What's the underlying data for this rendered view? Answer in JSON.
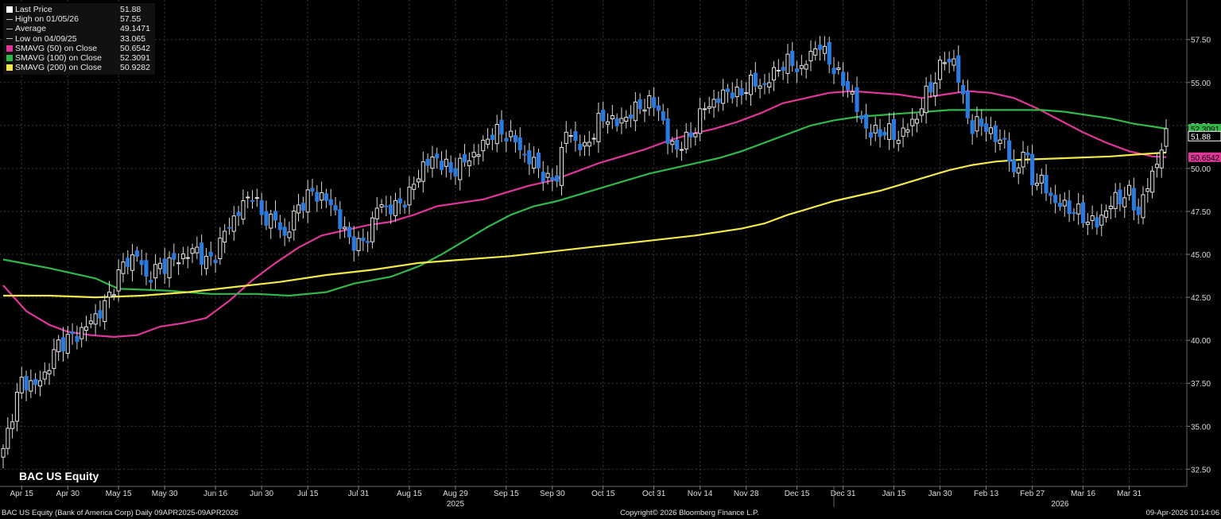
{
  "legend": {
    "items": [
      {
        "label": "Last Price",
        "value": "51.88",
        "color": "#ffffff",
        "icon": "filled-square"
      },
      {
        "label": "High on 01/05/26",
        "value": "57.55",
        "color": "#bbbbbb",
        "icon": "high-marker"
      },
      {
        "label": "Average",
        "value": "49.1471",
        "color": "#bbbbbb",
        "icon": "average-marker"
      },
      {
        "label": "Low on 04/09/25",
        "value": "33.065",
        "color": "#bbbbbb",
        "icon": "low-marker"
      },
      {
        "label": "SMAVG (50)  on Close",
        "value": "50.6542",
        "color": "#e0369a",
        "icon": "filled-square"
      },
      {
        "label": "SMAVG (100)  on Close",
        "value": "52.3091",
        "color": "#30b84a",
        "icon": "filled-square"
      },
      {
        "label": "SMAVG (200)  on Close",
        "value": "50.9282",
        "color": "#f2e84a",
        "icon": "filled-square"
      }
    ]
  },
  "ticker": "BAC US Equity",
  "footer": {
    "description": "BAC US Equity (Bank of America Corp) Daily 09APR2025-09APR2026",
    "copyright": "Copyright© 2026 Bloomberg Finance L.P.",
    "timestamp": "09-Apr-2026 10:14:06"
  },
  "chart_data": {
    "type": "candlestick",
    "y_ticks": [
      "32.50",
      "35.00",
      "37.50",
      "40.00",
      "42.50",
      "45.00",
      "47.50",
      "50.00",
      "52.50",
      "55.00",
      "57.50"
    ],
    "ylim": [
      31.5,
      59.8
    ],
    "x_tick_labels": [
      "Apr 15",
      "Apr 30",
      "May 15",
      "May 30",
      "Jun 16",
      "Jun 30",
      "Jul 15",
      "Jul 31",
      "Aug 15",
      "Aug 29",
      "Sep 15",
      "Sep 30",
      "Oct 15",
      "Oct 31",
      "Nov 14",
      "Nov 28",
      "Dec 15",
      "Dec 31",
      "Jan 15",
      "Jan 30",
      "Feb 13",
      "Feb 27",
      "Mar 16",
      "Mar 31"
    ],
    "year_labels": [
      "2025",
      "2026"
    ],
    "axis_tags": [
      {
        "value": 52.3091,
        "text": "52.3091",
        "color": "#30b84a"
      },
      {
        "value": 51.88,
        "text": "51.88",
        "color": "#ffffff"
      },
      {
        "value": 50.6542,
        "text": "50.6542",
        "color": "#e0369a"
      }
    ],
    "close_anchors": [
      {
        "d": 0,
        "v": 33.5
      },
      {
        "d": 2,
        "v": 35.8
      },
      {
        "d": 4,
        "v": 37.6
      },
      {
        "d": 7,
        "v": 37.4
      },
      {
        "d": 9,
        "v": 38.0
      },
      {
        "d": 12,
        "v": 39.8
      },
      {
        "d": 16,
        "v": 40.3
      },
      {
        "d": 19,
        "v": 41.1
      },
      {
        "d": 22,
        "v": 42.0
      },
      {
        "d": 26,
        "v": 44.4
      },
      {
        "d": 29,
        "v": 45.0
      },
      {
        "d": 31,
        "v": 43.6
      },
      {
        "d": 34,
        "v": 44.3
      },
      {
        "d": 37,
        "v": 44.6
      },
      {
        "d": 40,
        "v": 45.0
      },
      {
        "d": 42,
        "v": 45.3
      },
      {
        "d": 44,
        "v": 44.5
      },
      {
        "d": 46,
        "v": 45.0
      },
      {
        "d": 48,
        "v": 46.3
      },
      {
        "d": 51,
        "v": 47.5
      },
      {
        "d": 54,
        "v": 48.6
      },
      {
        "d": 56,
        "v": 47.2
      },
      {
        "d": 59,
        "v": 47.0
      },
      {
        "d": 61,
        "v": 46.0
      },
      {
        "d": 64,
        "v": 47.8
      },
      {
        "d": 67,
        "v": 48.6
      },
      {
        "d": 70,
        "v": 48.2
      },
      {
        "d": 72,
        "v": 47.5
      },
      {
        "d": 74,
        "v": 46.2
      },
      {
        "d": 77,
        "v": 45.5
      },
      {
        "d": 79,
        "v": 46.0
      },
      {
        "d": 81,
        "v": 47.8
      },
      {
        "d": 85,
        "v": 47.7
      },
      {
        "d": 88,
        "v": 48.5
      },
      {
        "d": 91,
        "v": 50.2
      },
      {
        "d": 94,
        "v": 50.6
      },
      {
        "d": 97,
        "v": 49.8
      },
      {
        "d": 100,
        "v": 50.4
      },
      {
        "d": 103,
        "v": 51.0
      },
      {
        "d": 106,
        "v": 52.1
      },
      {
        "d": 109,
        "v": 52.0
      },
      {
        "d": 111,
        "v": 51.6
      },
      {
        "d": 113,
        "v": 50.7
      },
      {
        "d": 116,
        "v": 50.1
      },
      {
        "d": 118,
        "v": 49.2
      },
      {
        "d": 120,
        "v": 49.6
      },
      {
        "d": 122,
        "v": 52.2
      },
      {
        "d": 124,
        "v": 51.6
      },
      {
        "d": 126,
        "v": 51.1
      },
      {
        "d": 129,
        "v": 52.7
      },
      {
        "d": 131,
        "v": 53.0
      },
      {
        "d": 133,
        "v": 52.6
      },
      {
        "d": 136,
        "v": 53.2
      },
      {
        "d": 139,
        "v": 53.8
      },
      {
        "d": 142,
        "v": 53.6
      },
      {
        "d": 144,
        "v": 51.6
      },
      {
        "d": 146,
        "v": 51.2
      },
      {
        "d": 148,
        "v": 51.6
      },
      {
        "d": 150,
        "v": 52.4
      },
      {
        "d": 152,
        "v": 53.6
      },
      {
        "d": 155,
        "v": 54.0
      },
      {
        "d": 157,
        "v": 54.6
      },
      {
        "d": 159,
        "v": 54.2
      },
      {
        "d": 162,
        "v": 55.0
      },
      {
        "d": 165,
        "v": 54.8
      },
      {
        "d": 168,
        "v": 55.9
      },
      {
        "d": 171,
        "v": 56.2
      },
      {
        "d": 173,
        "v": 55.6
      },
      {
        "d": 175,
        "v": 56.8
      },
      {
        "d": 177,
        "v": 57.1
      },
      {
        "d": 179,
        "v": 56.3
      },
      {
        "d": 181,
        "v": 55.3
      },
      {
        "d": 183,
        "v": 54.8
      },
      {
        "d": 186,
        "v": 52.8
      },
      {
        "d": 188,
        "v": 52.0
      },
      {
        "d": 191,
        "v": 52.2
      },
      {
        "d": 194,
        "v": 51.8
      },
      {
        "d": 196,
        "v": 52.4
      },
      {
        "d": 198,
        "v": 53.0
      },
      {
        "d": 200,
        "v": 54.3
      },
      {
        "d": 202,
        "v": 55.2
      },
      {
        "d": 204,
        "v": 56.4
      },
      {
        "d": 206,
        "v": 56.2
      },
      {
        "d": 208,
        "v": 54.1
      },
      {
        "d": 210,
        "v": 52.2
      },
      {
        "d": 212,
        "v": 52.8
      },
      {
        "d": 214,
        "v": 51.9
      },
      {
        "d": 217,
        "v": 51.6
      },
      {
        "d": 219,
        "v": 49.5
      },
      {
        "d": 221,
        "v": 51.1
      },
      {
        "d": 223,
        "v": 49.4
      },
      {
        "d": 225,
        "v": 49.2
      },
      {
        "d": 228,
        "v": 48.0
      },
      {
        "d": 231,
        "v": 47.7
      },
      {
        "d": 233,
        "v": 47.4
      },
      {
        "d": 235,
        "v": 47.0
      },
      {
        "d": 237,
        "v": 46.8
      },
      {
        "d": 239,
        "v": 47.6
      },
      {
        "d": 241,
        "v": 48.2
      },
      {
        "d": 244,
        "v": 48.5
      },
      {
        "d": 246,
        "v": 47.4
      },
      {
        "d": 248,
        "v": 49.0
      },
      {
        "d": 250,
        "v": 50.4
      },
      {
        "d": 252,
        "v": 51.88
      }
    ],
    "series": [
      {
        "name": "SMAVG (50)  on Close",
        "color": "#e0369a",
        "points": [
          [
            0,
            43.2
          ],
          [
            5,
            41.7
          ],
          [
            10,
            40.9
          ],
          [
            14,
            40.5
          ],
          [
            19,
            40.3
          ],
          [
            24,
            40.2
          ],
          [
            29,
            40.3
          ],
          [
            34,
            40.8
          ],
          [
            39,
            41.0
          ],
          [
            44,
            41.3
          ],
          [
            49,
            42.3
          ],
          [
            54,
            43.5
          ],
          [
            59,
            44.5
          ],
          [
            64,
            45.4
          ],
          [
            69,
            46.1
          ],
          [
            74,
            46.4
          ],
          [
            79,
            46.7
          ],
          [
            84,
            46.9
          ],
          [
            89,
            47.3
          ],
          [
            94,
            47.8
          ],
          [
            99,
            48.0
          ],
          [
            104,
            48.2
          ],
          [
            109,
            48.6
          ],
          [
            114,
            49.0
          ],
          [
            119,
            49.3
          ],
          [
            124,
            49.8
          ],
          [
            129,
            50.3
          ],
          [
            134,
            50.7
          ],
          [
            139,
            51.1
          ],
          [
            144,
            51.6
          ],
          [
            149,
            52.0
          ],
          [
            154,
            52.3
          ],
          [
            159,
            52.7
          ],
          [
            164,
            53.2
          ],
          [
            169,
            53.8
          ],
          [
            174,
            54.1
          ],
          [
            179,
            54.4
          ],
          [
            184,
            54.5
          ],
          [
            189,
            54.4
          ],
          [
            194,
            54.3
          ],
          [
            199,
            54.1
          ],
          [
            204,
            54.3
          ],
          [
            209,
            54.5
          ],
          [
            214,
            54.4
          ],
          [
            219,
            54.1
          ],
          [
            224,
            53.5
          ],
          [
            229,
            52.8
          ],
          [
            234,
            52.1
          ],
          [
            239,
            51.5
          ],
          [
            244,
            51.0
          ],
          [
            249,
            50.7
          ],
          [
            252,
            50.6542
          ]
        ]
      },
      {
        "name": "SMAVG (100)  on Close",
        "color": "#30b84a",
        "points": [
          [
            0,
            44.7
          ],
          [
            10,
            44.2
          ],
          [
            20,
            43.6
          ],
          [
            25,
            43.0
          ],
          [
            35,
            42.9
          ],
          [
            45,
            42.7
          ],
          [
            55,
            42.7
          ],
          [
            62,
            42.6
          ],
          [
            70,
            42.8
          ],
          [
            76,
            43.3
          ],
          [
            84,
            43.7
          ],
          [
            90,
            44.3
          ],
          [
            95,
            45.0
          ],
          [
            100,
            45.8
          ],
          [
            105,
            46.6
          ],
          [
            110,
            47.3
          ],
          [
            115,
            47.8
          ],
          [
            120,
            48.1
          ],
          [
            125,
            48.5
          ],
          [
            130,
            48.9
          ],
          [
            135,
            49.3
          ],
          [
            140,
            49.7
          ],
          [
            145,
            50.0
          ],
          [
            150,
            50.3
          ],
          [
            155,
            50.6
          ],
          [
            160,
            51.0
          ],
          [
            165,
            51.5
          ],
          [
            170,
            52.0
          ],
          [
            175,
            52.5
          ],
          [
            180,
            52.8
          ],
          [
            185,
            53.0
          ],
          [
            190,
            53.1
          ],
          [
            195,
            53.2
          ],
          [
            200,
            53.3
          ],
          [
            205,
            53.4
          ],
          [
            210,
            53.4
          ],
          [
            215,
            53.4
          ],
          [
            220,
            53.4
          ],
          [
            225,
            53.4
          ],
          [
            230,
            53.3
          ],
          [
            235,
            53.1
          ],
          [
            240,
            52.9
          ],
          [
            245,
            52.6
          ],
          [
            250,
            52.4
          ],
          [
            252,
            52.3091
          ]
        ]
      },
      {
        "name": "SMAVG (200)  on Close",
        "color": "#f2e84a",
        "points": [
          [
            0,
            42.6
          ],
          [
            10,
            42.6
          ],
          [
            20,
            42.5
          ],
          [
            30,
            42.6
          ],
          [
            40,
            42.8
          ],
          [
            50,
            43.1
          ],
          [
            60,
            43.4
          ],
          [
            70,
            43.8
          ],
          [
            80,
            44.1
          ],
          [
            90,
            44.5
          ],
          [
            100,
            44.7
          ],
          [
            110,
            44.9
          ],
          [
            120,
            45.2
          ],
          [
            130,
            45.5
          ],
          [
            140,
            45.8
          ],
          [
            150,
            46.1
          ],
          [
            160,
            46.5
          ],
          [
            165,
            46.8
          ],
          [
            170,
            47.3
          ],
          [
            175,
            47.7
          ],
          [
            180,
            48.1
          ],
          [
            185,
            48.4
          ],
          [
            190,
            48.7
          ],
          [
            195,
            49.1
          ],
          [
            200,
            49.5
          ],
          [
            205,
            49.9
          ],
          [
            210,
            50.2
          ],
          [
            215,
            50.4
          ],
          [
            220,
            50.5
          ],
          [
            230,
            50.6
          ],
          [
            240,
            50.7
          ],
          [
            245,
            50.8
          ],
          [
            252,
            50.9282
          ]
        ]
      }
    ]
  }
}
